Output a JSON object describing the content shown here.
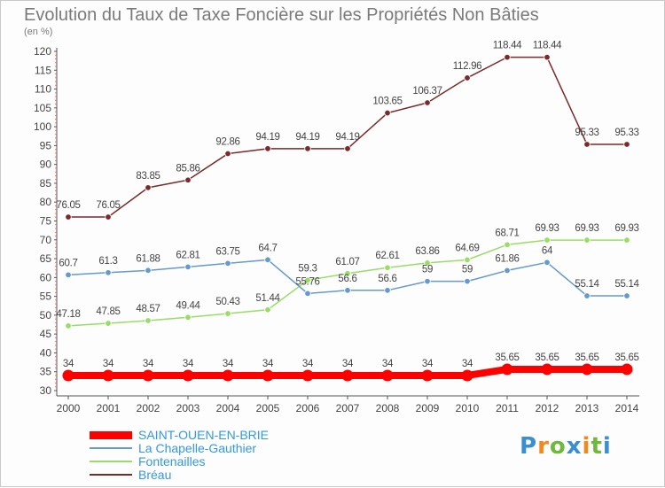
{
  "title": "Evolution du Taux de Taxe Foncière sur les Propriétés Non Bâties",
  "unit_label": "(en %)",
  "brand": {
    "text": "Proxiti",
    "colors": [
      "#3a8fd1",
      "#f08a1c",
      "#6fb83b",
      "#3a8fd1",
      "#f08a1c",
      "#6fb83b",
      "#3a8fd1"
    ]
  },
  "chart_data": {
    "type": "line",
    "title": "Evolution du Taux de Taxe Foncière sur les Propriétés Non Bâties",
    "ylabel": "(en %)",
    "xlabel": "",
    "x": [
      2000,
      2001,
      2002,
      2003,
      2004,
      2005,
      2006,
      2007,
      2008,
      2009,
      2010,
      2011,
      2012,
      2013,
      2014
    ],
    "ylim": [
      30,
      120
    ],
    "yticks": [
      30,
      35,
      40,
      45,
      50,
      55,
      60,
      65,
      70,
      75,
      80,
      85,
      90,
      95,
      100,
      105,
      110,
      115,
      120
    ],
    "grid": false,
    "legend_position": "bottom-left",
    "series": [
      {
        "name": "SAINT-OUEN-EN-BRIE",
        "color": "#ff0000",
        "width": 8,
        "values": [
          34,
          34,
          34,
          34,
          34,
          34,
          34,
          34,
          34,
          34,
          34,
          35.65,
          35.65,
          35.65,
          35.65
        ],
        "labels": [
          "34",
          "34",
          "34",
          "34",
          "34",
          "34",
          "34",
          "34",
          "34",
          "34",
          "34",
          "35.65",
          "35.65",
          "35.65",
          "35.65"
        ]
      },
      {
        "name": "La Chapelle-Gauthier",
        "color": "#6699cc",
        "width": 1.5,
        "values": [
          60.7,
          61.3,
          61.88,
          62.81,
          63.75,
          64.7,
          55.76,
          56.6,
          56.6,
          59,
          59,
          61.86,
          64,
          55.14,
          55.14
        ],
        "labels": [
          "60.7",
          "61.3",
          "61.88",
          "62.81",
          "63.75",
          "64.7",
          "55.76",
          "56.6",
          "56.6",
          "59",
          "59",
          "61.86",
          "64",
          "55.14",
          "55.14"
        ]
      },
      {
        "name": "Fontenailles",
        "color": "#99dd66",
        "width": 1.5,
        "values": [
          47.18,
          47.85,
          48.57,
          49.44,
          50.43,
          51.44,
          59.3,
          61.07,
          62.61,
          63.86,
          64.69,
          68.71,
          69.93,
          69.93,
          69.93
        ],
        "labels": [
          "47.18",
          "47.85",
          "48.57",
          "49.44",
          "50.43",
          "51.44",
          "59.3",
          "61.07",
          "62.61",
          "63.86",
          "64.69",
          "68.71",
          "69.93",
          "69.93",
          "69.93"
        ]
      },
      {
        "name": "Bréau",
        "color": "#7a2a2a",
        "width": 1.5,
        "values": [
          76.05,
          76.05,
          83.85,
          85.86,
          92.86,
          94.19,
          94.19,
          94.19,
          103.65,
          106.37,
          112.96,
          118.44,
          118.44,
          95.33,
          95.33
        ],
        "labels": [
          "76.05",
          "76.05",
          "83.85",
          "85.86",
          "92.86",
          "94.19",
          "94.19",
          "94.19",
          "103.65",
          "106.37",
          "112.96",
          "118.44",
          "118.44",
          "95.33",
          "95.33"
        ]
      }
    ]
  }
}
